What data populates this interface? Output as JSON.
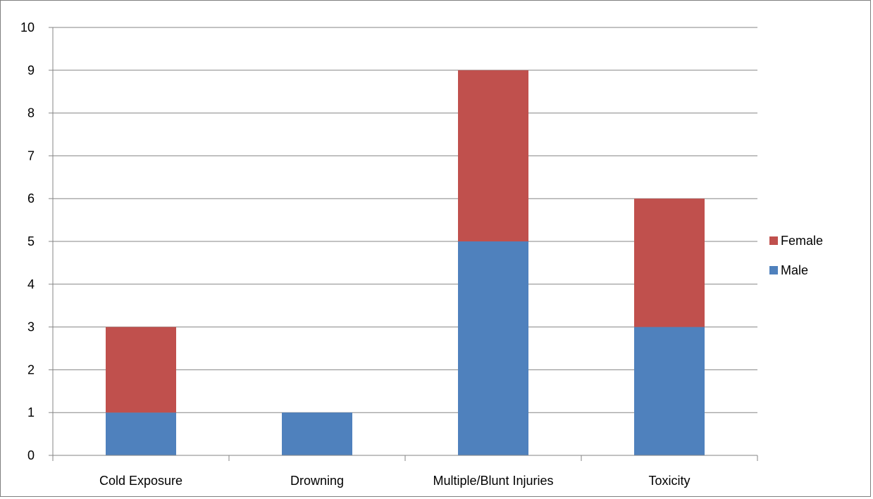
{
  "chart_data": {
    "type": "bar",
    "stacked": true,
    "categories": [
      "Cold Exposure",
      "Drowning",
      "Multiple/Blunt Injuries",
      "Toxicity"
    ],
    "series": [
      {
        "name": "Male",
        "values": [
          1,
          1,
          5,
          3
        ],
        "color": "#4f81bd"
      },
      {
        "name": "Female",
        "values": [
          2,
          0,
          4,
          3
        ],
        "color": "#c0504d"
      }
    ],
    "ylim": [
      0,
      10
    ],
    "yticks": [
      0,
      1,
      2,
      3,
      4,
      5,
      6,
      7,
      8,
      9,
      10
    ],
    "grid": true,
    "legend_position": "right",
    "legend_order": [
      "Female",
      "Male"
    ],
    "gridline_color": "#868686",
    "axis_color": "#868686"
  }
}
